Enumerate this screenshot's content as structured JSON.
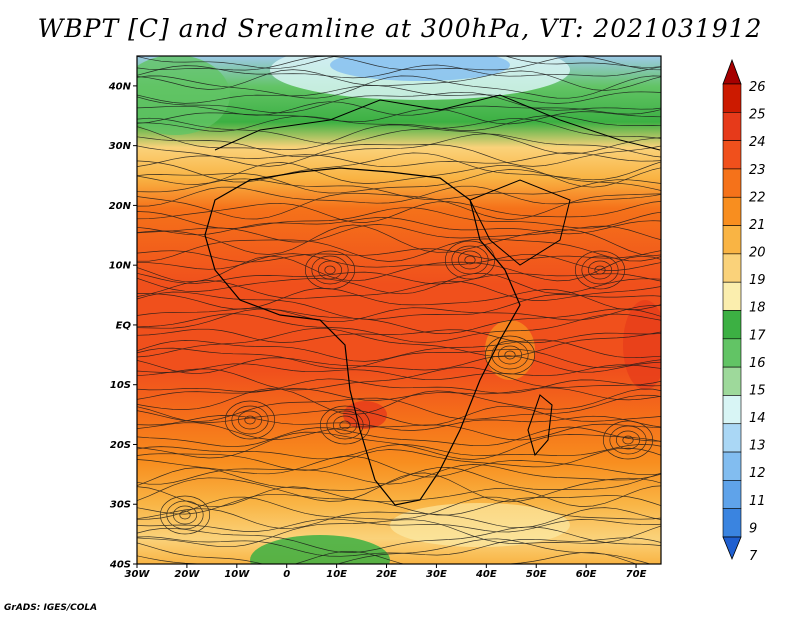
{
  "title": "WBPT [C] and Sreamline at 300hPa, VT: 2021031912",
  "credit": "GrADS: IGES/COLA",
  "map": {
    "lon_range": [
      -30,
      75
    ],
    "lat_range": [
      -40,
      45
    ],
    "x_ticks": [
      {
        "value": -30,
        "label": "30W"
      },
      {
        "value": -20,
        "label": "20W"
      },
      {
        "value": -10,
        "label": "10W"
      },
      {
        "value": 0,
        "label": "0"
      },
      {
        "value": 10,
        "label": "10E"
      },
      {
        "value": 20,
        "label": "20E"
      },
      {
        "value": 30,
        "label": "30E"
      },
      {
        "value": 40,
        "label": "40E"
      },
      {
        "value": 50,
        "label": "50E"
      },
      {
        "value": 60,
        "label": "60E"
      },
      {
        "value": 70,
        "label": "70E"
      }
    ],
    "y_ticks": [
      {
        "value": 40,
        "label": "40N"
      },
      {
        "value": 30,
        "label": "30N"
      },
      {
        "value": 20,
        "label": "20N"
      },
      {
        "value": 10,
        "label": "10N"
      },
      {
        "value": 0,
        "label": "EQ"
      },
      {
        "value": -10,
        "label": "10S"
      },
      {
        "value": -20,
        "label": "20S"
      },
      {
        "value": -30,
        "label": "30S"
      },
      {
        "value": -40,
        "label": "40S"
      }
    ]
  },
  "colorbar": {
    "levels": [
      "26",
      "25",
      "24",
      "23",
      "22",
      "21",
      "20",
      "19",
      "18",
      "17",
      "16",
      "15",
      "14",
      "13",
      "12",
      "11",
      "9",
      "7"
    ],
    "colors": [
      "#a50000",
      "#cc1a00",
      "#e63a1a",
      "#f0501c",
      "#f5721a",
      "#f88e1f",
      "#f9b444",
      "#fad27a",
      "#fbeeae",
      "#3cb043",
      "#62c465",
      "#9ed99b",
      "#d8f5f5",
      "#aad7f5",
      "#82bdf0",
      "#5fa3ea",
      "#3a84e0",
      "#1f5fd0"
    ]
  }
}
